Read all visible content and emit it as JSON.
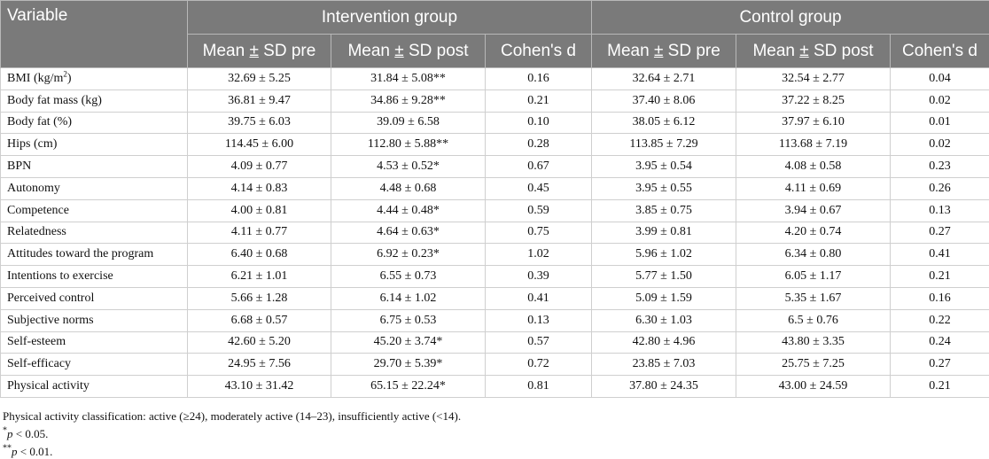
{
  "table": {
    "headers": {
      "variable": "Variable",
      "intervention_group": "Intervention group",
      "control_group": "Control group",
      "mean_sd_prefix": "Mean ",
      "pm": "±",
      "sd_pre_suffix": " SD pre",
      "sd_post_suffix": " SD post",
      "cohens_d": "Cohen's d"
    },
    "bmi_label_prefix": "BMI (kg/m",
    "bmi_label_sup": "2",
    "bmi_label_suffix": ")",
    "rows": [
      {
        "variable": "BMI (kg/m2)",
        "int_pre": "32.69 ± 5.25",
        "int_post": "31.84 ± 5.08**",
        "int_d": "0.16",
        "ctl_pre": "32.64 ± 2.71",
        "ctl_post": "32.54 ± 2.77",
        "ctl_d": "0.04"
      },
      {
        "variable": "Body fat mass (kg)",
        "int_pre": "36.81 ± 9.47",
        "int_post": "34.86 ± 9.28**",
        "int_d": "0.21",
        "ctl_pre": "37.40 ± 8.06",
        "ctl_post": "37.22 ± 8.25",
        "ctl_d": "0.02"
      },
      {
        "variable": "Body fat (%)",
        "int_pre": "39.75 ± 6.03",
        "int_post": "39.09 ± 6.58",
        "int_d": "0.10",
        "ctl_pre": "38.05 ± 6.12",
        "ctl_post": "37.97 ± 6.10",
        "ctl_d": "0.01"
      },
      {
        "variable": "Hips (cm)",
        "int_pre": "114.45 ± 6.00",
        "int_post": "112.80 ± 5.88**",
        "int_d": "0.28",
        "ctl_pre": "113.85 ± 7.29",
        "ctl_post": "113.68 ± 7.19",
        "ctl_d": "0.02"
      },
      {
        "variable": "BPN",
        "int_pre": "4.09 ± 0.77",
        "int_post": "4.53 ± 0.52*",
        "int_d": "0.67",
        "ctl_pre": "3.95 ± 0.54",
        "ctl_post": "4.08 ± 0.58",
        "ctl_d": "0.23"
      },
      {
        "variable": "Autonomy",
        "int_pre": "4.14 ± 0.83",
        "int_post": "4.48 ± 0.68",
        "int_d": "0.45",
        "ctl_pre": "3.95 ± 0.55",
        "ctl_post": "4.11 ± 0.69",
        "ctl_d": "0.26"
      },
      {
        "variable": "Competence",
        "int_pre": "4.00 ± 0.81",
        "int_post": "4.44 ± 0.48*",
        "int_d": "0.59",
        "ctl_pre": "3.85 ± 0.75",
        "ctl_post": "3.94 ± 0.67",
        "ctl_d": "0.13"
      },
      {
        "variable": "Relatedness",
        "int_pre": "4.11 ± 0.77",
        "int_post": "4.64 ± 0.63*",
        "int_d": "0.75",
        "ctl_pre": "3.99 ± 0.81",
        "ctl_post": "4.20 ± 0.74",
        "ctl_d": "0.27"
      },
      {
        "variable": "Attitudes toward the program",
        "int_pre": "6.40 ± 0.68",
        "int_post": "6.92 ± 0.23*",
        "int_d": "1.02",
        "ctl_pre": "5.96 ± 1.02",
        "ctl_post": "6.34 ± 0.80",
        "ctl_d": "0.41"
      },
      {
        "variable": "Intentions to exercise",
        "int_pre": "6.21 ± 1.01",
        "int_post": "6.55 ± 0.73",
        "int_d": "0.39",
        "ctl_pre": "5.77 ± 1.50",
        "ctl_post": "6.05 ± 1.17",
        "ctl_d": "0.21"
      },
      {
        "variable": "Perceived control",
        "int_pre": "5.66 ± 1.28",
        "int_post": "6.14 ± 1.02",
        "int_d": "0.41",
        "ctl_pre": "5.09 ± 1.59",
        "ctl_post": "5.35 ± 1.67",
        "ctl_d": "0.16"
      },
      {
        "variable": "Subjective norms",
        "int_pre": "6.68 ± 0.57",
        "int_post": "6.75 ± 0.53",
        "int_d": "0.13",
        "ctl_pre": "6.30 ± 1.03",
        "ctl_post": "6.5 ± 0.76",
        "ctl_d": "0.22"
      },
      {
        "variable": "Self-esteem",
        "int_pre": "42.60 ± 5.20",
        "int_post": "45.20 ± 3.74*",
        "int_d": "0.57",
        "ctl_pre": "42.80 ± 4.96",
        "ctl_post": "43.80 ± 3.35",
        "ctl_d": "0.24"
      },
      {
        "variable": "Self-efficacy",
        "int_pre": "24.95 ± 7.56",
        "int_post": "29.70 ± 5.39*",
        "int_d": "0.72",
        "ctl_pre": "23.85 ± 7.03",
        "ctl_post": "25.75 ± 7.25",
        "ctl_d": "0.27"
      },
      {
        "variable": "Physical activity",
        "int_pre": "43.10 ± 31.42",
        "int_post": "65.15 ± 22.24*",
        "int_d": "0.81",
        "ctl_pre": "37.80 ± 24.35",
        "ctl_post": "43.00 ± 24.59",
        "ctl_d": "0.21"
      }
    ]
  },
  "notes": {
    "classification": "Physical activity classification: active (≥24), moderately active (14–23), insufficiently active (<14).",
    "sig1_marker": "*",
    "sig1_p": "p",
    "sig1_text": " < 0.05.",
    "sig2_marker": "**",
    "sig2_p": "p",
    "sig2_text": " < 0.01."
  }
}
